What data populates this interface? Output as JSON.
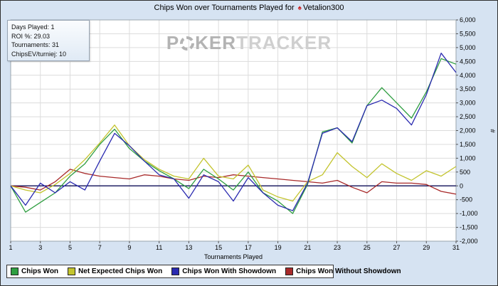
{
  "header": {
    "title_prefix": "Chips Won over Tournaments Played for",
    "player": "Vetalion300"
  },
  "stats": {
    "lines": [
      "Days Played: 1",
      "ROI %: 29.03",
      "Tournaments: 31",
      "ChipsEV/turniej: 10"
    ]
  },
  "watermark": {
    "part1": "P",
    "part2": "KER",
    "part3": "TRACKER"
  },
  "chart_data": {
    "type": "line",
    "title": "Chips Won over Tournaments Played for Vetalion300",
    "xlabel": "Tournaments Played",
    "ylabel": "#",
    "ylim": [
      -2000,
      6000
    ],
    "ytick_step": 500,
    "grid": true,
    "legend_position": "bottom",
    "x": [
      1,
      2,
      3,
      4,
      5,
      6,
      7,
      8,
      9,
      10,
      11,
      12,
      13,
      14,
      15,
      16,
      17,
      18,
      19,
      20,
      21,
      22,
      23,
      24,
      25,
      26,
      27,
      28,
      29,
      30,
      31
    ],
    "xticks": [
      1,
      3,
      5,
      7,
      9,
      11,
      13,
      15,
      17,
      19,
      21,
      23,
      25,
      27,
      29,
      31
    ],
    "series": [
      {
        "name": "Chips Won",
        "color": "#2f9e41",
        "values": [
          0,
          -950,
          -600,
          -250,
          350,
          800,
          1500,
          2050,
          1350,
          900,
          550,
          250,
          -100,
          600,
          250,
          -150,
          500,
          -250,
          -550,
          -1000,
          50,
          1950,
          2100,
          1550,
          2900,
          3550,
          3000,
          2450,
          3400,
          4600,
          4400
        ]
      },
      {
        "name": "Net Expected Chips Won",
        "color": "#c3c42e",
        "values": [
          0,
          -150,
          -250,
          50,
          450,
          950,
          1550,
          2200,
          1450,
          950,
          600,
          350,
          250,
          1000,
          350,
          250,
          750,
          -150,
          -400,
          -550,
          150,
          400,
          1200,
          700,
          300,
          800,
          450,
          200,
          550,
          350,
          700
        ]
      },
      {
        "name": "Chips Won With Showdown",
        "color": "#2a2ab0",
        "values": [
          0,
          -700,
          100,
          -250,
          150,
          -150,
          900,
          1900,
          1450,
          900,
          400,
          250,
          -450,
          400,
          150,
          -550,
          300,
          -250,
          -700,
          -900,
          100,
          1900,
          2100,
          1600,
          2900,
          3100,
          2800,
          2200,
          3300,
          4800,
          4100
        ]
      },
      {
        "name": "Chips Won Without Showdown",
        "color": "#a82a2a",
        "values": [
          0,
          -50,
          -150,
          150,
          600,
          450,
          350,
          300,
          250,
          400,
          350,
          250,
          200,
          350,
          300,
          400,
          350,
          300,
          250,
          200,
          150,
          100,
          200,
          -50,
          -250,
          150,
          100,
          100,
          50,
          -200,
          -300
        ]
      }
    ]
  }
}
